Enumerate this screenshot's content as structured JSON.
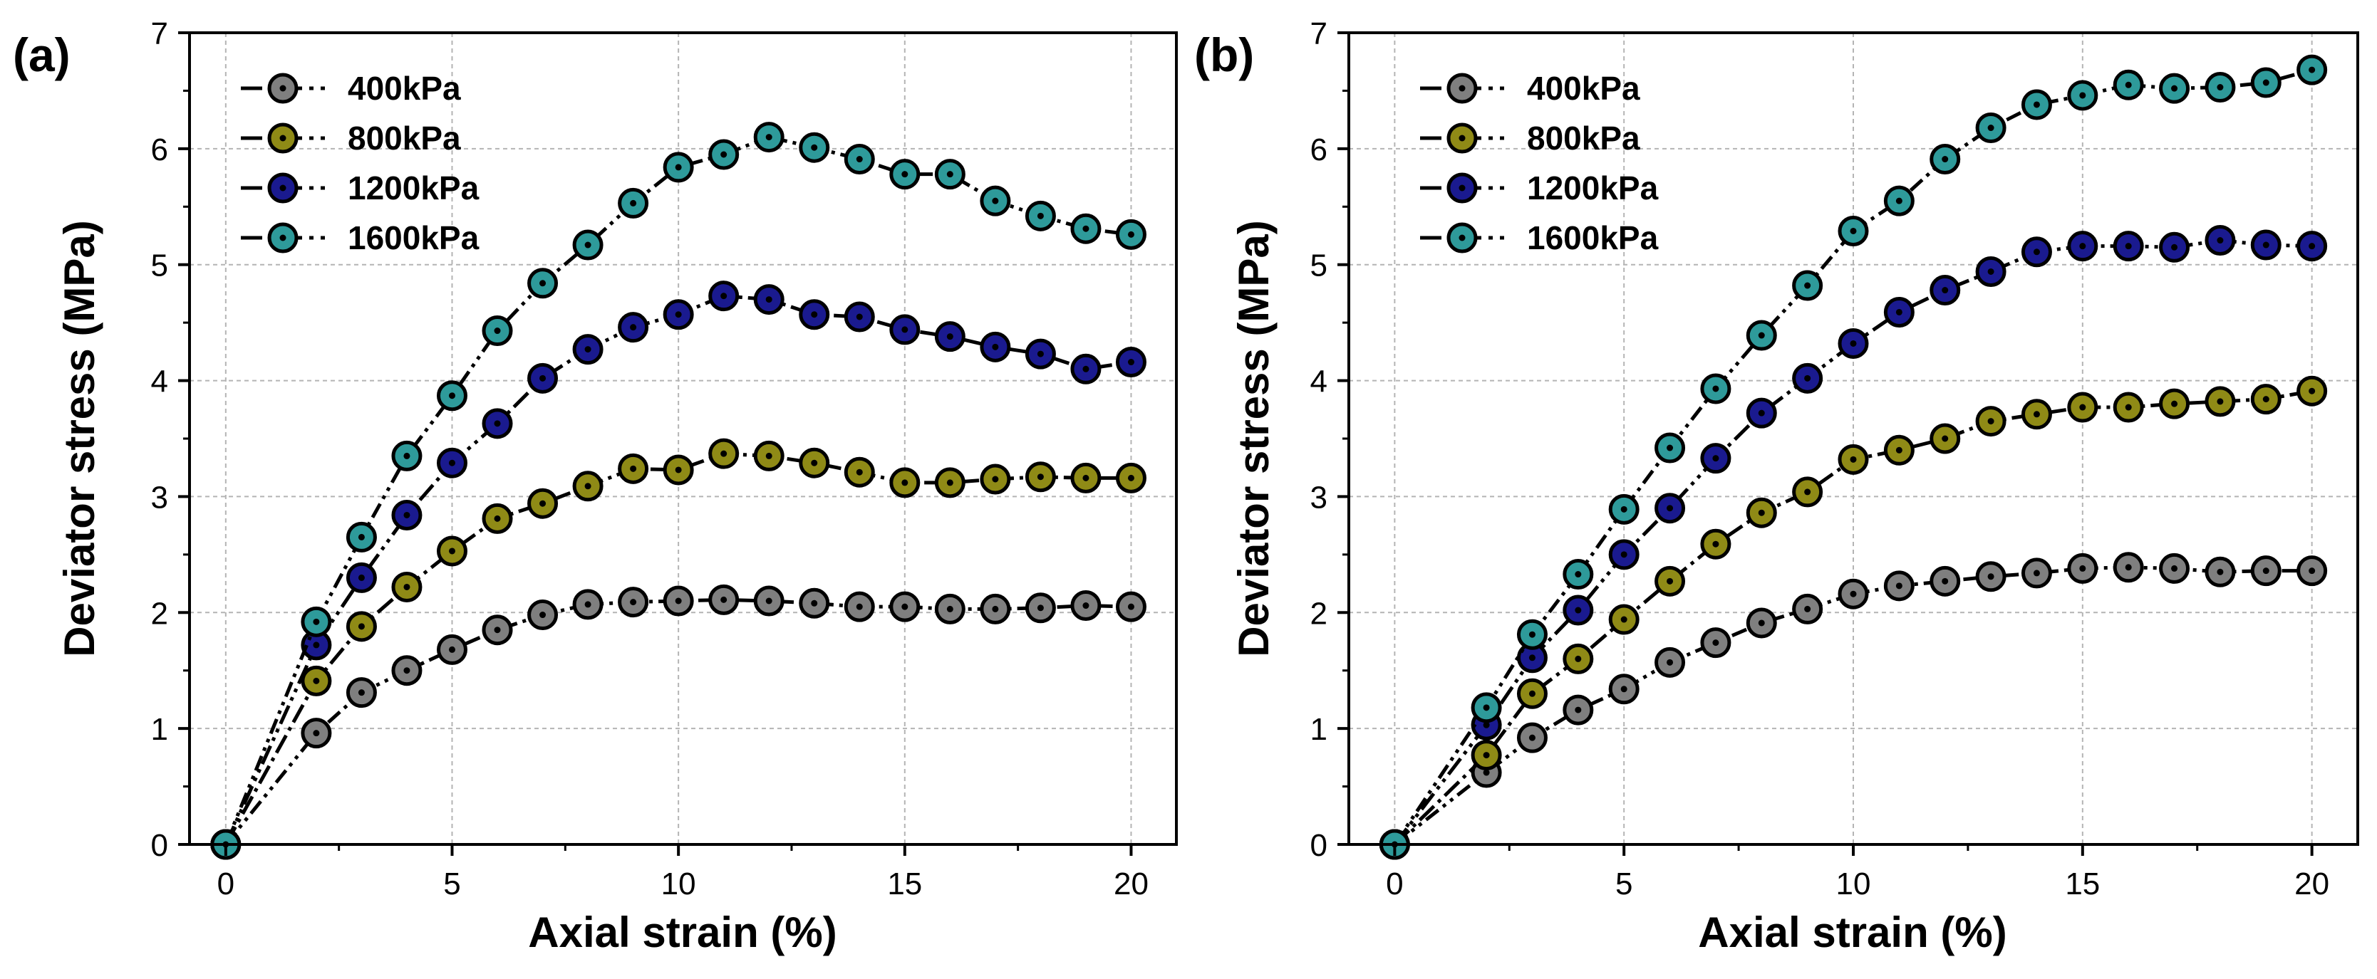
{
  "figure": {
    "panels": [
      {
        "panel_label": "(a)",
        "xlabel": "Axial strain (%)",
        "ylabel": "Deviator stress (MPa)",
        "xlim": [
          -0.8,
          21
        ],
        "ylim": [
          0,
          7
        ],
        "xticks": [
          0,
          5,
          10,
          15,
          20
        ],
        "yticks": [
          0,
          1,
          2,
          3,
          4,
          5,
          6,
          7
        ],
        "grid": true
      },
      {
        "panel_label": "(b)",
        "xlabel": "Axial strain (%)",
        "ylabel": "Deviator stress (MPa)",
        "xlim": [
          -1,
          21
        ],
        "ylim": [
          0,
          7
        ],
        "xticks": [
          0,
          5,
          10,
          15,
          20
        ],
        "yticks": [
          0,
          1,
          2,
          3,
          4,
          5,
          6,
          7
        ],
        "grid": true
      }
    ]
  },
  "chart_data": [
    {
      "type": "line",
      "panel": "(a)",
      "title": "",
      "xlabel": "Axial strain (%)",
      "ylabel": "Deviator stress (MPa)",
      "xlim": [
        -0.8,
        21
      ],
      "ylim": [
        0,
        7
      ],
      "grid": true,
      "legend_position": "top-left",
      "series": [
        {
          "name": "400kPa",
          "color": "#7f7f7f",
          "x": [
            0,
            2,
            3,
            4,
            5,
            6,
            7,
            8,
            9,
            10,
            11,
            12,
            13,
            14,
            15,
            16,
            17,
            18,
            19,
            20
          ],
          "y": [
            0,
            0.96,
            1.31,
            1.5,
            1.68,
            1.85,
            1.98,
            2.07,
            2.09,
            2.1,
            2.11,
            2.1,
            2.08,
            2.05,
            2.05,
            2.03,
            2.03,
            2.04,
            2.06,
            2.05
          ]
        },
        {
          "name": "800kPa",
          "color": "#8f8a16",
          "x": [
            0,
            2,
            3,
            4,
            5,
            6,
            7,
            8,
            9,
            10,
            11,
            12,
            13,
            14,
            15,
            16,
            17,
            18,
            19,
            20
          ],
          "y": [
            0,
            1.41,
            1.88,
            2.22,
            2.53,
            2.81,
            2.94,
            3.09,
            3.24,
            3.23,
            3.37,
            3.35,
            3.29,
            3.21,
            3.12,
            3.12,
            3.15,
            3.17,
            3.16,
            3.16
          ]
        },
        {
          "name": "1200kPa",
          "color": "#1a1a8f",
          "x": [
            0,
            2,
            3,
            4,
            5,
            6,
            7,
            8,
            9,
            10,
            11,
            12,
            13,
            14,
            15,
            16,
            17,
            18,
            19,
            20
          ],
          "y": [
            0,
            1.72,
            2.3,
            2.84,
            3.29,
            3.63,
            4.02,
            4.27,
            4.46,
            4.57,
            4.73,
            4.7,
            4.57,
            4.55,
            4.44,
            4.38,
            4.29,
            4.23,
            4.1,
            4.16
          ]
        },
        {
          "name": "1600kPa",
          "color": "#2e9a9a",
          "x": [
            0,
            2,
            3,
            4,
            5,
            6,
            7,
            8,
            9,
            10,
            11,
            12,
            13,
            14,
            15,
            16,
            17,
            18,
            19,
            20
          ],
          "y": [
            0,
            1.92,
            2.65,
            3.35,
            3.87,
            4.43,
            4.84,
            5.17,
            5.53,
            5.84,
            5.95,
            6.1,
            6.01,
            5.91,
            5.78,
            5.78,
            5.55,
            5.42,
            5.31,
            5.26
          ]
        }
      ]
    },
    {
      "type": "line",
      "panel": "(b)",
      "title": "",
      "xlabel": "Axial strain (%)",
      "ylabel": "Deviator stress (MPa)",
      "xlim": [
        -1,
        21
      ],
      "ylim": [
        0,
        7
      ],
      "grid": true,
      "legend_position": "top-left",
      "series": [
        {
          "name": "400kPa",
          "color": "#7f7f7f",
          "x": [
            0,
            2,
            3,
            4,
            5,
            6,
            7,
            8,
            9,
            10,
            11,
            12,
            13,
            14,
            15,
            16,
            17,
            18,
            19,
            20
          ],
          "y": [
            0,
            0.62,
            0.92,
            1.16,
            1.34,
            1.57,
            1.74,
            1.91,
            2.03,
            2.16,
            2.23,
            2.27,
            2.31,
            2.34,
            2.38,
            2.39,
            2.38,
            2.35,
            2.36,
            2.36
          ]
        },
        {
          "name": "800kPa",
          "color": "#8f8a16",
          "x": [
            0,
            2,
            3,
            4,
            5,
            6,
            7,
            8,
            9,
            10,
            11,
            12,
            13,
            14,
            15,
            16,
            17,
            18,
            19,
            20
          ],
          "y": [
            0,
            0.77,
            1.3,
            1.6,
            1.94,
            2.27,
            2.59,
            2.86,
            3.04,
            3.32,
            3.4,
            3.5,
            3.65,
            3.71,
            3.77,
            3.77,
            3.8,
            3.82,
            3.84,
            3.91
          ]
        },
        {
          "name": "1200kPa",
          "color": "#1a1a8f",
          "x": [
            0,
            2,
            3,
            4,
            5,
            6,
            7,
            8,
            9,
            10,
            11,
            12,
            13,
            14,
            15,
            16,
            17,
            18,
            19,
            20
          ],
          "y": [
            0,
            1.03,
            1.61,
            2.02,
            2.5,
            2.9,
            3.33,
            3.72,
            4.02,
            4.32,
            4.59,
            4.78,
            4.94,
            5.11,
            5.16,
            5.16,
            5.15,
            5.21,
            5.17,
            5.16
          ]
        },
        {
          "name": "1600kPa",
          "color": "#2e9a9a",
          "x": [
            0,
            2,
            3,
            4,
            5,
            6,
            7,
            8,
            9,
            10,
            11,
            12,
            13,
            14,
            15,
            16,
            17,
            18,
            19,
            20
          ],
          "y": [
            0,
            1.18,
            1.81,
            2.33,
            2.89,
            3.42,
            3.93,
            4.39,
            4.82,
            5.29,
            5.55,
            5.91,
            6.18,
            6.38,
            6.46,
            6.55,
            6.52,
            6.53,
            6.57,
            6.68
          ]
        }
      ]
    }
  ]
}
